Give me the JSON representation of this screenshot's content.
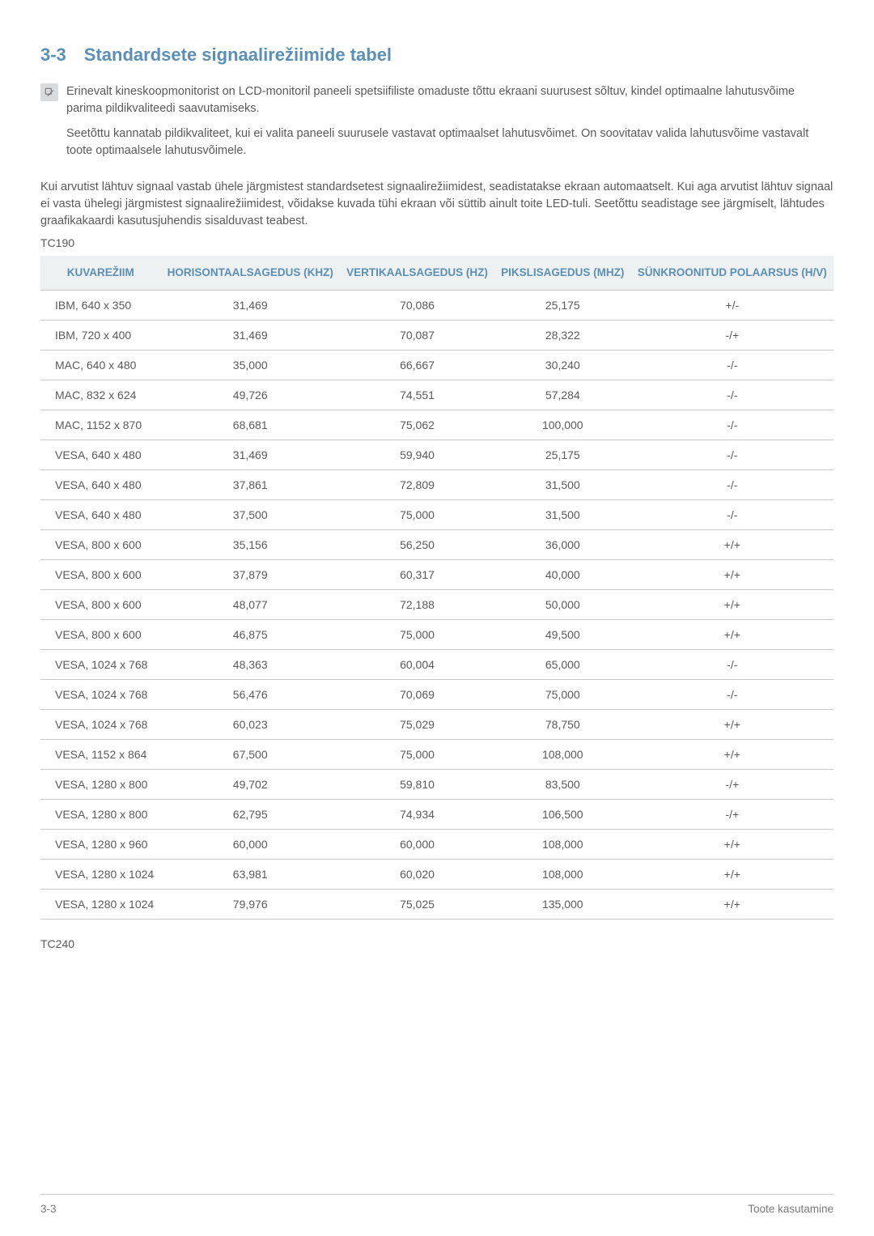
{
  "heading": {
    "number": "3-3",
    "title": "Standardsete signaalirežiimide tabel"
  },
  "note": {
    "p1": "Erinevalt kineskoopmonitorist on LCD-monitoril paneeli spetsiifiliste omaduste tõttu ekraani suurusest sõltuv, kindel optimaalne lahutusvõime parima pildikvaliteedi saavutamiseks.",
    "p2": "Seetõttu kannatab pildikvaliteet, kui ei valita paneeli suurusele vastavat optimaalset lahutusvõimet. On soovitatav valida lahutusvõime vastavalt toote optimaalsele lahutusvõimele."
  },
  "body_para": "Kui arvutist lähtuv signaal vastab ühele järgmistest standardsetest signaalirežiimidest, seadistatakse ekraan automaatselt. Kui aga arvutist lähtuv signaal ei vasta ühelegi järgmistest signaalirežiimidest, võidakse kuvada tühi ekraan või süttib ainult toite LED-tuli. Seetõttu seadistage see järgmiselt, lähtudes graafikakaardi kasutusjuhendis sisalduvast teabest.",
  "model1_label": "TC190",
  "model2_label": "TC240",
  "table": {
    "columns": [
      "KUVAREŽIIM",
      "HORISONTAALSAGEDUS (KHZ)",
      "VERTIKAALSAGEDUS (HZ)",
      "PIKSLISAGEDUS (MHZ)",
      "SÜNKROONITUD POLAARSUS (H/V)"
    ],
    "rows": [
      [
        "IBM, 640 x 350",
        "31,469",
        "70,086",
        "25,175",
        "+/-"
      ],
      [
        "IBM, 720 x 400",
        "31,469",
        "70,087",
        "28,322",
        "-/+"
      ],
      [
        "MAC, 640 x 480",
        "35,000",
        "66,667",
        "30,240",
        "-/-"
      ],
      [
        "MAC, 832 x 624",
        "49,726",
        "74,551",
        "57,284",
        "-/-"
      ],
      [
        "MAC, 1152 x 870",
        "68,681",
        "75,062",
        "100,000",
        "-/-"
      ],
      [
        "VESA, 640 x 480",
        "31,469",
        "59,940",
        "25,175",
        "-/-"
      ],
      [
        "VESA, 640 x 480",
        "37,861",
        "72,809",
        "31,500",
        "-/-"
      ],
      [
        "VESA, 640 x 480",
        "37,500",
        "75,000",
        "31,500",
        "-/-"
      ],
      [
        "VESA, 800 x 600",
        "35,156",
        "56,250",
        "36,000",
        "+/+"
      ],
      [
        "VESA, 800 x 600",
        "37,879",
        "60,317",
        "40,000",
        "+/+"
      ],
      [
        "VESA, 800 x 600",
        "48,077",
        "72,188",
        "50,000",
        "+/+"
      ],
      [
        "VESA, 800 x 600",
        "46,875",
        "75,000",
        "49,500",
        "+/+"
      ],
      [
        "VESA, 1024 x 768",
        "48,363",
        "60,004",
        "65,000",
        "-/-"
      ],
      [
        "VESA, 1024 x 768",
        "56,476",
        "70,069",
        "75,000",
        "-/-"
      ],
      [
        "VESA, 1024 x 768",
        "60,023",
        "75,029",
        "78,750",
        "+/+"
      ],
      [
        "VESA, 1152 x 864",
        "67,500",
        "75,000",
        "108,000",
        "+/+"
      ],
      [
        "VESA, 1280 x 800",
        "49,702",
        "59,810",
        "83,500",
        "-/+"
      ],
      [
        "VESA, 1280 x 800",
        "62,795",
        "74,934",
        "106,500",
        "-/+"
      ],
      [
        "VESA, 1280 x 960",
        "60,000",
        "60,000",
        "108,000",
        "+/+"
      ],
      [
        "VESA, 1280 x 1024",
        "63,981",
        "60,020",
        "108,000",
        "+/+"
      ],
      [
        "VESA, 1280 x 1024",
        "79,976",
        "75,025",
        "135,000",
        "+/+"
      ]
    ]
  },
  "footer": {
    "left": "3-3",
    "right": "Toote kasutamine"
  },
  "style": {
    "accent_color": "#5b8fb5",
    "text_color": "#5a5a5a",
    "header_bg": "#edf1f2",
    "border_color": "#c9c9c9",
    "icon_bg": "#d9dbdc"
  }
}
